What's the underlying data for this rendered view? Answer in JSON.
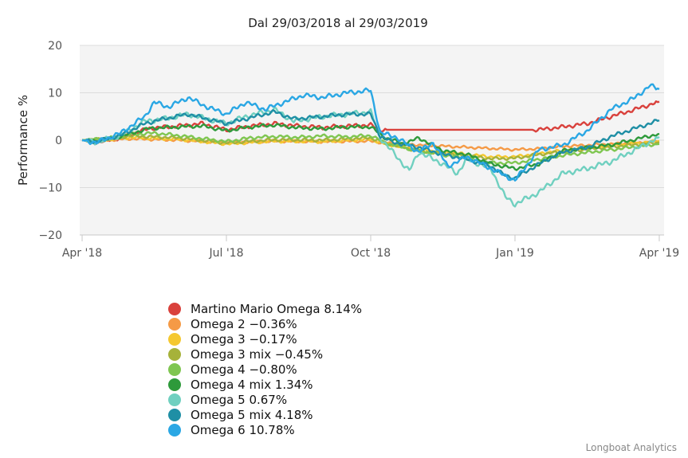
{
  "chart_data": {
    "type": "line",
    "title": "Dal 29/03/2018 al 29/03/2019",
    "xlabel": "",
    "ylabel": "Performance %",
    "ylim": [
      -20,
      20
    ],
    "yticks": [
      20,
      10,
      0,
      -10,
      -20
    ],
    "ytick_labels": [
      "20",
      "10",
      "0",
      "−10",
      "−20"
    ],
    "xticks": [
      {
        "t": 0,
        "label": "Apr '18"
      },
      {
        "t": 3,
        "label": "Jul '18"
      },
      {
        "t": 6,
        "label": "Oct '18"
      },
      {
        "t": 9,
        "label": "Jan '19"
      },
      {
        "t": 12,
        "label": "Apr '19"
      }
    ],
    "xlim": [
      -0.05,
      12.1
    ],
    "grid": true,
    "legend_position": "bottom-left",
    "series": [
      {
        "name": "Martino Mario Omega",
        "final": "8.14%",
        "color": "#d9413c",
        "t": [
          0,
          0.3,
          0.8,
          1.4,
          2.0,
          2.5,
          3.0,
          3.5,
          4.0,
          4.5,
          5.0,
          5.5,
          6.0,
          6.2,
          6.5,
          7.0,
          8.0,
          9.0,
          9.5,
          10.0,
          10.5,
          11.0,
          11.5,
          12.0
        ],
        "y": [
          0,
          -0.5,
          0.5,
          2.5,
          3.0,
          3.5,
          2.2,
          3.0,
          3.5,
          3.0,
          2.7,
          3.0,
          3.2,
          2.2,
          2.2,
          2.2,
          2.2,
          2.2,
          2.2,
          2.8,
          3.5,
          5.0,
          6.5,
          8.14
        ]
      },
      {
        "name": "Omega 2",
        "final": "-0.36%",
        "color": "#f59a46",
        "t": [
          0,
          0.5,
          1.0,
          2.0,
          3.0,
          4.0,
          5.0,
          6.0,
          6.3,
          7.0,
          8.0,
          9.0,
          9.5,
          10.0,
          11.0,
          12.0
        ],
        "y": [
          0,
          0,
          0.3,
          0.0,
          -0.5,
          -0.2,
          -0.3,
          -0.2,
          -0.6,
          -1.0,
          -1.5,
          -2.0,
          -1.8,
          -1.3,
          -0.8,
          -0.36
        ]
      },
      {
        "name": "Omega 3",
        "final": "-0.17%",
        "color": "#f5c830",
        "t": [
          0,
          0.5,
          1.0,
          2.0,
          3.0,
          4.0,
          5.0,
          6.0,
          6.3,
          7.0,
          8.0,
          8.5,
          9.0,
          9.5,
          10.0,
          11.0,
          12.0
        ],
        "y": [
          0,
          0.1,
          0.6,
          0.2,
          -0.8,
          -0.2,
          -0.3,
          0.2,
          -0.8,
          -2.0,
          -3.0,
          -3.5,
          -3.5,
          -2.8,
          -2.2,
          -1.2,
          -0.17
        ]
      },
      {
        "name": "Omega 3 mix",
        "final": "-0.45%",
        "color": "#a6b23a",
        "t": [
          0,
          0.5,
          1.0,
          2.0,
          3.0,
          4.0,
          5.0,
          6.0,
          6.3,
          7.0,
          8.0,
          8.5,
          9.0,
          9.5,
          10.0,
          11.0,
          12.0
        ],
        "y": [
          0,
          0.2,
          0.9,
          0.5,
          -0.6,
          0.1,
          0.0,
          0.5,
          -0.6,
          -2.3,
          -3.3,
          -3.9,
          -3.8,
          -3.0,
          -2.4,
          -1.4,
          -0.45
        ]
      },
      {
        "name": "Omega 4",
        "final": "-0.80%",
        "color": "#7fc651",
        "t": [
          0,
          0.5,
          1.0,
          1.5,
          2.0,
          3.0,
          3.5,
          4.0,
          4.5,
          5.0,
          5.5,
          6.0,
          6.3,
          7.0,
          8.0,
          8.5,
          9.0,
          9.5,
          10.0,
          11.0,
          12.0
        ],
        "y": [
          0,
          0.3,
          1.2,
          1.5,
          1.0,
          -0.3,
          0.5,
          0.8,
          0.6,
          0.9,
          0.7,
          1.0,
          -0.6,
          -2.3,
          -3.8,
          -4.8,
          -4.8,
          -4.0,
          -3.2,
          -2.0,
          -0.8
        ]
      },
      {
        "name": "Omega 4 mix",
        "final": "1.34%",
        "color": "#2e9a3b",
        "t": [
          0,
          0.3,
          0.8,
          1.4,
          2.0,
          2.5,
          3.0,
          3.5,
          4.0,
          4.5,
          5.0,
          5.5,
          6.0,
          6.3,
          6.7,
          7.0,
          7.5,
          8.0,
          8.5,
          9.0,
          9.5,
          10.0,
          11.0,
          12.0
        ],
        "y": [
          0,
          -0.3,
          0.8,
          2.5,
          2.8,
          3.0,
          2.0,
          2.8,
          3.2,
          2.6,
          2.4,
          2.8,
          2.8,
          0.5,
          -0.8,
          0.5,
          -2.2,
          -3.0,
          -5.0,
          -6.0,
          -5.0,
          -2.2,
          -1.0,
          1.34
        ]
      },
      {
        "name": "Omega 5",
        "final": "0.67%",
        "color": "#70d0c0",
        "t": [
          0,
          0.3,
          0.8,
          1.3,
          1.7,
          2.2,
          3.0,
          3.4,
          4.0,
          4.4,
          5.0,
          5.5,
          6.0,
          6.2,
          6.5,
          6.8,
          7.0,
          7.5,
          7.8,
          8.0,
          8.5,
          8.8,
          9.0,
          9.5,
          10.0,
          10.5,
          11.0,
          11.5,
          12.0
        ],
        "y": [
          0,
          -0.4,
          1.0,
          4.0,
          4.5,
          5.5,
          3.5,
          5.0,
          6.5,
          4.0,
          5.0,
          5.5,
          6.0,
          0.5,
          -3.0,
          -6.5,
          -2.5,
          -5.0,
          -7.0,
          -4.0,
          -6.0,
          -12.0,
          -13.5,
          -11.0,
          -7.0,
          -6.0,
          -4.5,
          -2.0,
          0.67
        ]
      },
      {
        "name": "Omega 5 mix",
        "final": "4.18%",
        "color": "#1f8fa5",
        "t": [
          0,
          0.3,
          0.8,
          1.3,
          1.7,
          2.2,
          3.0,
          3.4,
          4.0,
          4.4,
          5.0,
          5.5,
          6.0,
          6.2,
          6.5,
          7.0,
          7.5,
          8.0,
          8.5,
          8.8,
          9.0,
          9.5,
          10.0,
          10.5,
          11.0,
          11.5,
          12.0
        ],
        "y": [
          0,
          -0.3,
          1.0,
          3.5,
          4.5,
          5.5,
          3.5,
          4.5,
          6.0,
          4.5,
          5.0,
          5.5,
          5.5,
          0.8,
          -0.5,
          -1.5,
          -3.0,
          -4.0,
          -5.5,
          -7.5,
          -8.0,
          -5.0,
          -2.5,
          -1.5,
          0.8,
          2.5,
          4.18
        ]
      },
      {
        "name": "Omega 6",
        "final": "10.78%",
        "color": "#2aa7e4",
        "t": [
          0,
          0.3,
          0.8,
          1.3,
          1.5,
          1.8,
          2.2,
          2.6,
          3.0,
          3.4,
          3.8,
          4.2,
          4.6,
          5.0,
          5.5,
          6.0,
          6.2,
          6.5,
          7.0,
          7.3,
          7.6,
          8.0,
          8.5,
          8.8,
          9.0,
          9.5,
          10.0,
          10.5,
          11.0,
          11.5,
          11.8,
          12.0
        ],
        "y": [
          0,
          -0.5,
          1.5,
          5.0,
          8.0,
          7.0,
          9.0,
          7.0,
          5.5,
          8.0,
          6.5,
          8.0,
          9.5,
          9.0,
          10.0,
          10.5,
          1.5,
          0.8,
          -2.5,
          -0.5,
          -5.5,
          -3.5,
          -6.0,
          -7.5,
          -8.5,
          -2.0,
          -1.0,
          2.0,
          6.5,
          9.0,
          11.5,
          10.78
        ]
      }
    ]
  },
  "legend_labels": [
    "Martino Mario Omega 8.14%",
    "Omega 2 −0.36%",
    "Omega 3 −0.17%",
    "Omega 3 mix −0.45%",
    "Omega 4 −0.80%",
    "Omega 4 mix 1.34%",
    "Omega 5 0.67%",
    "Omega 5 mix 4.18%",
    "Omega 6 10.78%"
  ],
  "credit": "Longboat Analytics"
}
